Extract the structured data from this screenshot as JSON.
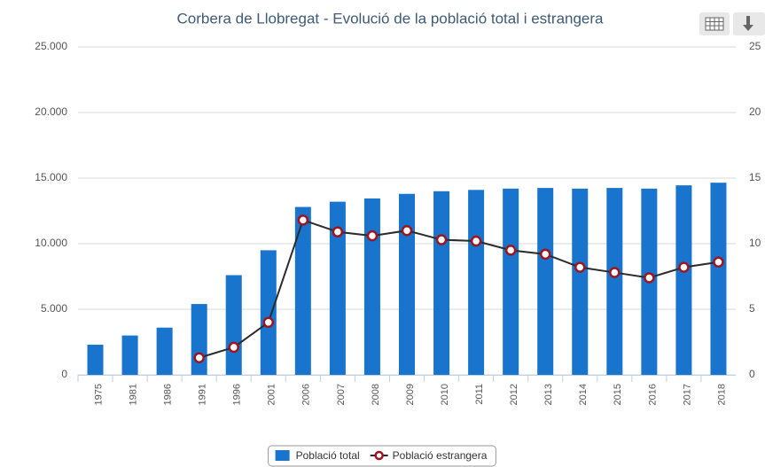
{
  "chart_data": {
    "type": "bar",
    "title": "Corbera de Llobregat - Evolució de la població total i estrangera",
    "categories": [
      "1975",
      "1981",
      "1986",
      "1991",
      "1996",
      "2001",
      "2006",
      "2007",
      "2008",
      "2009",
      "2010",
      "2011",
      "2012",
      "2013",
      "2014",
      "2015",
      "2016",
      "2017",
      "2018"
    ],
    "series": [
      {
        "name": "Població total",
        "type": "bar",
        "color": "#1874cd",
        "values": [
          2300,
          3000,
          3600,
          5400,
          7600,
          9500,
          12800,
          13200,
          13450,
          13800,
          14000,
          14100,
          14200,
          14250,
          14200,
          14250,
          14200,
          14450,
          14650
        ]
      },
      {
        "name": "Població estrangera",
        "type": "line",
        "axis": "y2",
        "color": "#2b2b2b",
        "marker_color": "#a0141e",
        "values": [
          null,
          null,
          null,
          1.3,
          2.1,
          4.0,
          11.8,
          10.9,
          10.6,
          11.0,
          10.3,
          10.2,
          9.5,
          9.2,
          8.2,
          7.8,
          7.4,
          8.2,
          8.6
        ]
      }
    ],
    "ylim": [
      0,
      25000
    ],
    "yticks": [
      0,
      {
        "value": 5000,
        "label": "5.000"
      },
      {
        "value": 10000,
        "label": "10.000"
      },
      {
        "value": 15000,
        "label": "15.000"
      },
      {
        "value": 20000,
        "label": "20.000"
      },
      {
        "value": 25000,
        "label": "25.000"
      }
    ],
    "y2lim": [
      0,
      25
    ],
    "y2ticks": [
      0,
      5,
      10,
      15,
      20,
      25
    ],
    "grid": true,
    "legend": "bottom"
  }
}
